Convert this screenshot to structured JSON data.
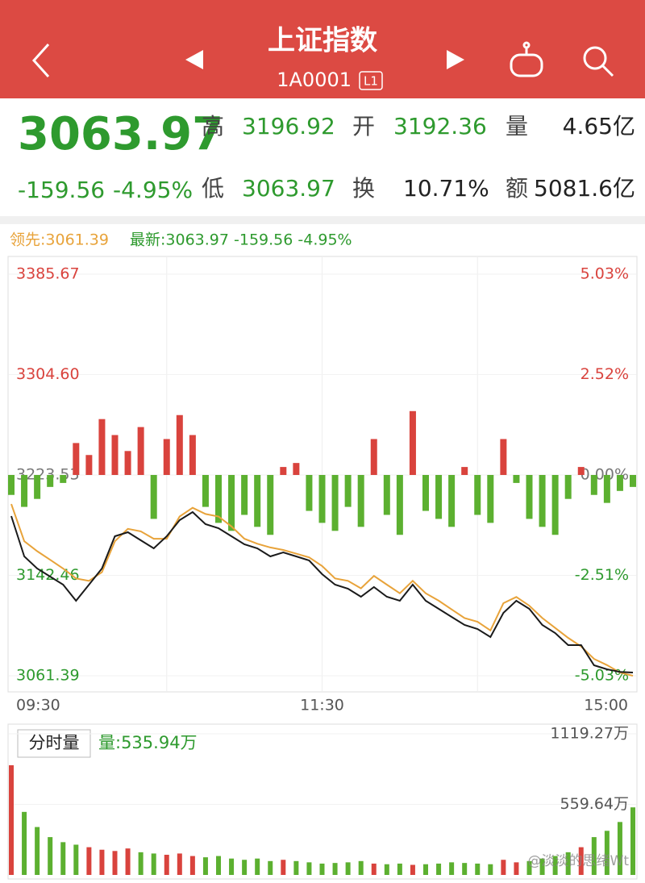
{
  "header": {
    "title": "上证指数",
    "code": "1A0001",
    "badge": "L1"
  },
  "quote": {
    "price": "3063.97",
    "change": "-159.56",
    "change_pct": "-4.95%",
    "stats": [
      {
        "label": "高",
        "value": "3196.92"
      },
      {
        "label": "开",
        "value": "3192.36"
      },
      {
        "label": "量",
        "value": "4.65亿"
      },
      {
        "label": "低",
        "value": "3063.97"
      },
      {
        "label": "换",
        "value": "10.71%"
      },
      {
        "label": "额",
        "value": "5081.6亿"
      }
    ]
  },
  "chart_data": [
    {
      "type": "line",
      "categories": [
        "09:30",
        null,
        null,
        null,
        null,
        null,
        null,
        null,
        null,
        null,
        null,
        null,
        null,
        null,
        null,
        null,
        null,
        null,
        null,
        null,
        null,
        null,
        null,
        null,
        "11:30",
        null,
        null,
        null,
        null,
        null,
        null,
        null,
        null,
        null,
        null,
        null,
        null,
        null,
        null,
        null,
        null,
        null,
        null,
        null,
        null,
        null,
        null,
        null,
        "15:00"
      ],
      "ylim": [
        3061.39,
        3385.67
      ],
      "yticks": [
        3385.67,
        {
          "value": 3304.6,
          "label": "3304.60"
        },
        3223.53,
        3142.46,
        3061.39
      ],
      "y2lim": [
        -5.03,
        5.03
      ],
      "y2ticks": [
        {
          "value": 5.03,
          "label": "5.03%"
        },
        {
          "value": 2.52,
          "label": "2.52%"
        },
        {
          "value": 0,
          "label": "0.00%"
        },
        {
          "value": -2.51,
          "label": "-2.51%"
        },
        {
          "value": -5.03,
          "label": "-5.03%"
        }
      ],
      "grid": true,
      "series": [
        {
          "name": "领先:3061.39",
          "color": "#e8a33a",
          "values": [
            3200,
            3170,
            3162,
            3155,
            3148,
            3140,
            3138,
            3145,
            3170,
            3180,
            3178,
            3172,
            3172,
            3190,
            3197,
            3192,
            3190,
            3182,
            3172,
            3168,
            3165,
            3163,
            3160,
            3157,
            3150,
            3140,
            3138,
            3132,
            3142,
            3135,
            3128,
            3138,
            3128,
            3122,
            3115,
            3108,
            3105,
            3098,
            3120,
            3125,
            3118,
            3108,
            3100,
            3092,
            3085,
            3075,
            3070,
            3064,
            3061.39
          ]
        },
        {
          "name": "最新:3063.97 -159.56 -4.95%",
          "color": "#1a1a1a",
          "values": [
            3190.31,
            3157.75,
            3147.98,
            3141.47,
            3134.96,
            3121.93,
            3134.96,
            3147.98,
            3174.03,
            3177.29,
            3170.77,
            3164.26,
            3174.03,
            3187.05,
            3193.57,
            3183.8,
            3180.54,
            3174.03,
            3167.52,
            3164.26,
            3157.75,
            3161.01,
            3157.75,
            3154.49,
            3143.42,
            3134.96,
            3131.7,
            3125.19,
            3133,
            3125.19,
            3121.93,
            3134.96,
            3121.93,
            3115.42,
            3108.91,
            3102.4,
            3099.14,
            3092.63,
            3112.17,
            3121.93,
            3115.42,
            3102.4,
            3095.89,
            3086.12,
            3086.12,
            3069.84,
            3066.58,
            3064.5,
            3063.97
          ]
        },
        {
          "type": "bar",
          "axis": "y2",
          "color": "#d9433d",
          "negative_color": "#5cb030",
          "values": [
            -0.5,
            -0.8,
            -0.6,
            -0.3,
            -0.2,
            0.8,
            0.5,
            1.4,
            1.0,
            0.6,
            1.2,
            -1.1,
            0.9,
            1.5,
            1.0,
            -0.8,
            -1.2,
            -1.4,
            -1.0,
            -1.3,
            -1.5,
            0.2,
            0.3,
            -0.9,
            -1.2,
            -1.4,
            -0.8,
            -1.3,
            0.9,
            -1.0,
            -1.5,
            1.6,
            -0.9,
            -1.1,
            -1.3,
            0.2,
            -1.0,
            -1.2,
            0.9,
            -0.2,
            -1.1,
            -1.3,
            -1.5,
            -0.6,
            0.2,
            -0.5,
            -0.7,
            -0.4,
            -0.3
          ]
        }
      ]
    },
    {
      "type": "bar",
      "title": "分时量",
      "subtitle": "量:535.94万",
      "ylim": [
        0,
        1119.27
      ],
      "yticks": [
        {
          "value": 1119.27,
          "label": "1119.27万"
        },
        {
          "value": 559.64,
          "label": "559.64万"
        }
      ],
      "color": "#d9433d",
      "negative_color": "#5cb030",
      "values": [
        870,
        500,
        380,
        300,
        260,
        240,
        220,
        200,
        190,
        210,
        180,
        170,
        160,
        170,
        150,
        140,
        150,
        130,
        120,
        130,
        110,
        120,
        110,
        100,
        90,
        95,
        100,
        110,
        90,
        85,
        90,
        80,
        85,
        90,
        100,
        95,
        90,
        85,
        120,
        100,
        110,
        130,
        150,
        180,
        220,
        300,
        350,
        420,
        535.94
      ]
    }
  ],
  "watermark": "@淡淡的思绪Wt"
}
